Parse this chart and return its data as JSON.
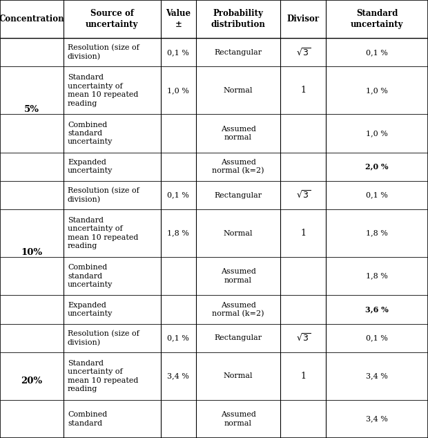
{
  "col_headers": [
    "Concentration",
    "Source of\nuncertainty",
    "Value\n±",
    "Probability\ndistribution",
    "Divisor",
    "Standard\nuncertainty"
  ],
  "rows": [
    {
      "concentration": "5%",
      "source": "Resolution (size of\ndivision)",
      "value": "0,1 %",
      "prob": "Rectangular",
      "divisor_text": "$\\sqrt{3}$",
      "std_unc": "0,1 %",
      "bold_std": false,
      "conc_span": 4
    },
    {
      "concentration": "",
      "source": "Standard\nuncertainty of\nmean 10 repeated\nreading",
      "value": "1,0 %",
      "prob": "Normal",
      "divisor_text": "1",
      "std_unc": "1,0 %",
      "bold_std": false,
      "conc_span": 0
    },
    {
      "concentration": "",
      "source": "Combined\nstandard\nuncertainty",
      "value": "",
      "prob": "Assumed\nnormal",
      "divisor_text": "",
      "std_unc": "1,0 %",
      "bold_std": false,
      "conc_span": 0
    },
    {
      "concentration": "",
      "source": "Expanded\nuncertainty",
      "value": "",
      "prob": "Assumed\nnormal (k=2)",
      "divisor_text": "",
      "std_unc": "2,0 %",
      "bold_std": true,
      "conc_span": 0
    },
    {
      "concentration": "10%",
      "source": "Resolution (size of\ndivision)",
      "value": "0,1 %",
      "prob": "Rectangular",
      "divisor_text": "$\\sqrt{3}$",
      "std_unc": "0,1 %",
      "bold_std": false,
      "conc_span": 4
    },
    {
      "concentration": "",
      "source": "Standard\nuncertainty of\nmean 10 repeated\nreading",
      "value": "1,8 %",
      "prob": "Normal",
      "divisor_text": "1",
      "std_unc": "1,8 %",
      "bold_std": false,
      "conc_span": 0
    },
    {
      "concentration": "",
      "source": "Combined\nstandard\nuncertainty",
      "value": "",
      "prob": "Assumed\nnormal",
      "divisor_text": "",
      "std_unc": "1,8 %",
      "bold_std": false,
      "conc_span": 0
    },
    {
      "concentration": "",
      "source": "Expanded\nuncertainty",
      "value": "",
      "prob": "Assumed\nnormal (k=2)",
      "divisor_text": "",
      "std_unc": "3,6 %",
      "bold_std": true,
      "conc_span": 0
    },
    {
      "concentration": "20%",
      "source": "Resolution (size of\ndivision)",
      "value": "0,1 %",
      "prob": "Rectangular",
      "divisor_text": "$\\sqrt{3}$",
      "std_unc": "0,1 %",
      "bold_std": false,
      "conc_span": 3
    },
    {
      "concentration": "",
      "source": "Standard\nuncertainty of\nmean 10 repeated\nreading",
      "value": "3,4 %",
      "prob": "Normal",
      "divisor_text": "1",
      "std_unc": "3,4 %",
      "bold_std": false,
      "conc_span": 0
    },
    {
      "concentration": "",
      "source": "Combined\nstandard",
      "value": "",
      "prob": "Assumed\nnormal",
      "divisor_text": "",
      "std_unc": "3,4 %",
      "bold_std": false,
      "conc_span": 0
    }
  ],
  "header_font_size": 8.5,
  "cell_font_size": 8.0,
  "fig_width": 6.2,
  "fig_height": 6.34
}
